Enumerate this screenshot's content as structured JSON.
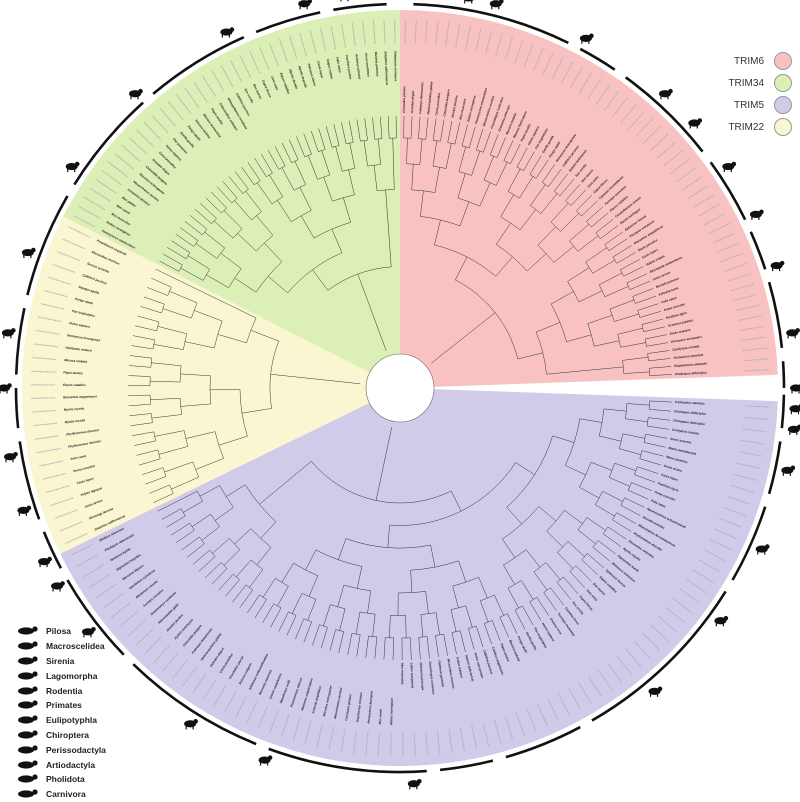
{
  "figure": {
    "legend_trim": [
      {
        "label": "TRIM6",
        "color": "#f8c2c2"
      },
      {
        "label": "TRIM34",
        "color": "#dcefb6"
      },
      {
        "label": "TRIM5",
        "color": "#cfcbe9"
      },
      {
        "label": "TRIM22",
        "color": "#faf6d2"
      }
    ],
    "legend_orders": [
      {
        "label": "Pilosa",
        "icon": "anteater-silhouette-icon"
      },
      {
        "label": "Macroscelidea",
        "icon": "elephant-shrew-silhouette-icon"
      },
      {
        "label": "Sirenia",
        "icon": "manatee-silhouette-icon"
      },
      {
        "label": "Lagomorpha",
        "icon": "rabbit-silhouette-icon"
      },
      {
        "label": "Rodentia",
        "icon": "mouse-silhouette-icon"
      },
      {
        "label": "Primates",
        "icon": "monkey-silhouette-icon"
      },
      {
        "label": "Eulipotyphla",
        "icon": "shrew-silhouette-icon"
      },
      {
        "label": "Chiroptera",
        "icon": "bat-silhouette-icon"
      },
      {
        "label": "Perissodactyla",
        "icon": "horse-silhouette-icon"
      },
      {
        "label": "Artiodactyla",
        "icon": "cow-silhouette-icon"
      },
      {
        "label": "Pholidota",
        "icon": "pangolin-silhouette-icon"
      },
      {
        "label": "Carnivora",
        "icon": "dog-silhouette-icon"
      }
    ],
    "clade_labels": {
      "trim6": [
        "Cricetulus griseus",
        "Octodon degus",
        "Fukomys damarensis",
        "Heterocephalus glaber",
        "Cavia porcellus",
        "Chinchilla lanigera",
        "Jaculus jaculus",
        "Mus musculus",
        "Rattus norvegicus",
        "Peromyscus maniculatus",
        "Mesocricetus auratus",
        "Oryctolagus cuniculus",
        "Ochotona princeps",
        "Macaca mulatta",
        "Macaca fascicularis",
        "Papio anubis",
        "Homo sapiens",
        "Pan troglodytes",
        "Gorilla gorilla",
        "Pongo abelii",
        "Nomascus leucogenys",
        "Callithrix jacchus",
        "Saimiri boliviensis",
        "Sus scrofa",
        "Bos taurus",
        "Ovis aries",
        "Capra hircus",
        "Camelus dromedarius",
        "Tursiops truncatus",
        "Equus caballus",
        "Ceratotherium simum",
        "Myotis lucifugus",
        "Eptesicus fuscus",
        "Pteropus vampyrus",
        "Rousettus aegyptiacus",
        "Manis javanica",
        "Canis lupus",
        "Vulpes vulpes",
        "Ailuropoda melanoleuca",
        "Ursus arctos",
        "Mustela putorius",
        "Enhydra lutris",
        "Felis catus",
        "Puma concolor",
        "Panthera tigris",
        "Acinonyx jubatus",
        "Sorex araneus",
        "Erinaceus europaeus",
        "Condylura cristata",
        "Trichechus manatus",
        "Elephantulus edwardii",
        "Choloepus didactylus"
      ],
      "trim34": [
        "Peromyscus maniculatus",
        "Rattus norvegicus",
        "Mus musculus",
        "Mus caroli",
        "Mus pahari",
        "Cricetulus griseus",
        "Mesocricetus auratus",
        "Microtus ochrogaster",
        "Chinchilla lanigera",
        "Octodon degus",
        "Cavia porcellus",
        "Homo sapiens",
        "Pan paniscus",
        "Gorilla gorilla",
        "Pongo abelii",
        "Macaca mulatta",
        "Macaca nemestrina",
        "Papio anubis",
        "Chlorocebus sabaeus",
        "Rhinopithecus roxellana",
        "Callithrix jacchus",
        "Sus scrofa",
        "Bos taurus",
        "Capra hircus",
        "Ovis aries",
        "Equus caballus",
        "Myotis davidii",
        "Myotis brandtii",
        "Pteropus alecto",
        "Canis lupus",
        "Vulpes vulpes",
        "Felis catus",
        "Panthera pardus",
        "Acinonyx jubatus",
        "Ursus maritimus",
        "Mustela putorius",
        "Zalophus californianus",
        "Odobenus rosmarus"
      ],
      "trim22": [
        "Zalophus californianus",
        "Mirounga leonina",
        "Ursus arctos",
        "Vulpes lagopus",
        "Canis lupus",
        "Puma concolor",
        "Felis catus",
        "Phyllostomus discolor",
        "Phyllostomus discolor",
        "Myotis myotis",
        "Myotis myotis",
        "Rousettus aegyptiacus",
        "Equus caballus",
        "Papio anubis",
        "Macaca mulatta",
        "Hylobates moloch",
        "Nomascus leucogenys",
        "Homo sapiens",
        "Pan troglodytes",
        "Pongo abelii",
        "Sapajus apella",
        "Callithrix jacchus",
        "Tarsius syrichta",
        "Microcebus murinus",
        "Propithecus coquereli"
      ],
      "trim5": [
        "Trichechus manatus",
        "Choloepus didactylus",
        "Choloepus didactylus",
        "Condylura cristata",
        "Sorex araneus",
        "Manis pentadactyla",
        "Manis javanica",
        "Ursus arctos",
        "Canis lupus",
        "Panthera tigris",
        "Puma concolor",
        "Felis catus",
        "Neomonachus schauinslandi",
        "Mustela erminea",
        "Rhinolophus ferrumequinum",
        "Phyllostomus discolor",
        "Desmodus rotundus",
        "Myotis myotis",
        "Pipistrellus kuhlii",
        "Molossus molossus",
        "Eptesicus fuscus",
        "Equus caballus",
        "Bos taurus",
        "Ovis aries",
        "Capra hircus",
        "Sus scrofa",
        "Camelus ferus",
        "Tursiops truncatus",
        "Orcinus orca",
        "Homo sapiens",
        "Pan troglodytes",
        "Gorilla gorilla",
        "Pongo abelii",
        "Macaca mulatta",
        "Papio anubis",
        "Colobus angolensis",
        "Callithrix jacchus",
        "Aotus nancymaae",
        "Saimiri boliviensis",
        "Cebus imitator",
        "Microcebus murinus",
        "Otolemur garnettii",
        "Oryctolagus cuniculus",
        "Ochotona princeps",
        "Lepus europaeus",
        "Mus musculus",
        "Rattus norvegicus",
        "Mus caroli",
        "Peromyscus leucopus",
        "Onychomys torridus",
        "Cricetulus griseus",
        "Mesocricetus auratus",
        "Microtus ochrogaster",
        "Arvicola amphibius",
        "Meriones unguiculatus",
        "Psammomys obesus",
        "Dipodomys ordii",
        "Castor canadensis",
        "Marmota marmota",
        "Ictidomys tridecemlineatus",
        "Sciurus vulgaris",
        "Urocitellus parryii",
        "Cavia porcellus",
        "Octodon degus",
        "Heterocephalus glaber",
        "Fukomys damarensis",
        "Chinchilla lanigera",
        "Hystrix brachyura",
        "Jaculus jaculus",
        "Nannospalax galili",
        "Grammomys surdaster",
        "Acomys russatus",
        "Mastomys coucha",
        "Apodemus sylvaticus",
        "Meriones libycus",
        "Sigmodon hispidus",
        "Neotoma lepida",
        "Phodopus roborovskii",
        "Ellobius lutescens"
      ]
    }
  }
}
